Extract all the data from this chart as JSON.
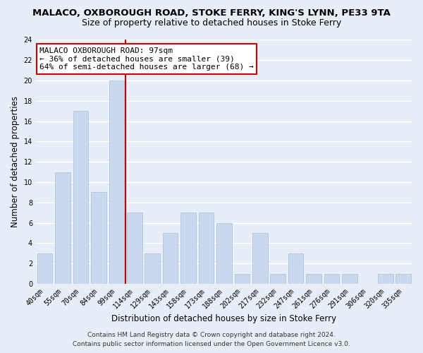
{
  "title": "MALACO, OXBOROUGH ROAD, STOKE FERRY, KING'S LYNN, PE33 9TA",
  "subtitle": "Size of property relative to detached houses in Stoke Ferry",
  "xlabel": "Distribution of detached houses by size in Stoke Ferry",
  "ylabel": "Number of detached properties",
  "bar_labels": [
    "40sqm",
    "55sqm",
    "70sqm",
    "84sqm",
    "99sqm",
    "114sqm",
    "129sqm",
    "143sqm",
    "158sqm",
    "173sqm",
    "188sqm",
    "202sqm",
    "217sqm",
    "232sqm",
    "247sqm",
    "261sqm",
    "276sqm",
    "291sqm",
    "306sqm",
    "320sqm",
    "335sqm"
  ],
  "bar_values": [
    3,
    11,
    17,
    9,
    20,
    7,
    3,
    5,
    7,
    7,
    6,
    1,
    5,
    1,
    3,
    1,
    1,
    1,
    0,
    1,
    1
  ],
  "bar_color": "#c8d8ed",
  "bar_edge_color": "#a8c0de",
  "vline_color": "#cc0000",
  "annotation_line0": "MALACO OXBOROUGH ROAD: 97sqm",
  "annotation_line1": "← 36% of detached houses are smaller (39)",
  "annotation_line2": "64% of semi-detached houses are larger (68) →",
  "annotation_box_facecolor": "#ffffff",
  "annotation_box_edgecolor": "#cc0000",
  "ylim": [
    0,
    24
  ],
  "yticks": [
    0,
    2,
    4,
    6,
    8,
    10,
    12,
    14,
    16,
    18,
    20,
    22,
    24
  ],
  "footer_line1": "Contains HM Land Registry data © Crown copyright and database right 2024.",
  "footer_line2": "Contains public sector information licensed under the Open Government Licence v3.0.",
  "background_color": "#e8eef8",
  "grid_color": "#ffffff",
  "title_fontsize": 9.5,
  "subtitle_fontsize": 9,
  "xlabel_fontsize": 8.5,
  "ylabel_fontsize": 8.5,
  "tick_fontsize": 7,
  "annotation_fontsize": 8,
  "footer_fontsize": 6.5
}
